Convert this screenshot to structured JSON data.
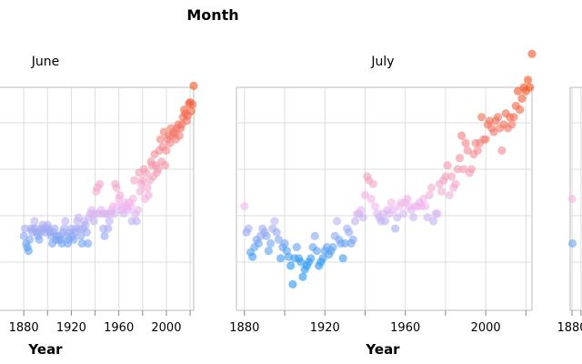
{
  "chart_data": {
    "type": "scatter",
    "title": "Month",
    "xlabel": "Year",
    "ylabel": "",
    "x_tick_labels": [
      "1880",
      "1920",
      "1960",
      "2000"
    ],
    "grid": true,
    "color_scale": {
      "low": "#2196f3",
      "mid": "#f2b8f0",
      "high": "#f4511e",
      "domain": [
        -0.8,
        0,
        1.6
      ]
    },
    "facets": [
      {
        "label": "June",
        "xlim": [
          1860,
          2023
        ],
        "ylim": [
          -1.4,
          1.6
        ],
        "points": [
          [
            1880,
            -0.4
          ],
          [
            1881,
            -0.3
          ],
          [
            1882,
            -0.5
          ],
          [
            1883,
            -0.55
          ],
          [
            1884,
            -0.6
          ],
          [
            1885,
            -0.45
          ],
          [
            1886,
            -0.3
          ],
          [
            1887,
            -0.35
          ],
          [
            1888,
            -0.3
          ],
          [
            1889,
            -0.2
          ],
          [
            1890,
            -0.3
          ],
          [
            1891,
            -0.35
          ],
          [
            1892,
            -0.4
          ],
          [
            1893,
            -0.45
          ],
          [
            1894,
            -0.35
          ],
          [
            1895,
            -0.3
          ],
          [
            1896,
            -0.25
          ],
          [
            1897,
            -0.3
          ],
          [
            1898,
            -0.35
          ],
          [
            1899,
            -0.3
          ],
          [
            1900,
            -0.25
          ],
          [
            1901,
            -0.3
          ],
          [
            1902,
            -0.35
          ],
          [
            1903,
            -0.4
          ],
          [
            1904,
            -0.5
          ],
          [
            1905,
            -0.35
          ],
          [
            1906,
            -0.3
          ],
          [
            1907,
            -0.45
          ],
          [
            1908,
            -0.4
          ],
          [
            1909,
            -0.45
          ],
          [
            1910,
            -0.4
          ],
          [
            1911,
            -0.45
          ],
          [
            1912,
            -0.5
          ],
          [
            1913,
            -0.35
          ],
          [
            1914,
            -0.3
          ],
          [
            1915,
            -0.2
          ],
          [
            1916,
            -0.4
          ],
          [
            1917,
            -0.5
          ],
          [
            1918,
            -0.45
          ],
          [
            1919,
            -0.35
          ],
          [
            1920,
            -0.3
          ],
          [
            1921,
            -0.4
          ],
          [
            1922,
            -0.45
          ],
          [
            1923,
            -0.35
          ],
          [
            1924,
            -0.3
          ],
          [
            1925,
            -0.2
          ],
          [
            1926,
            -0.15
          ],
          [
            1927,
            -0.3
          ],
          [
            1928,
            -0.4
          ],
          [
            1929,
            -0.5
          ],
          [
            1930,
            -0.3
          ],
          [
            1931,
            -0.2
          ],
          [
            1932,
            -0.25
          ],
          [
            1933,
            -0.35
          ],
          [
            1934,
            -0.5
          ],
          [
            1935,
            -0.15
          ],
          [
            1936,
            -0.1
          ],
          [
            1937,
            -0.05
          ],
          [
            1938,
            -0.1
          ],
          [
            1939,
            -0.2
          ],
          [
            1940,
            -0.1
          ],
          [
            1941,
            0.2
          ],
          [
            1942,
            0.25
          ],
          [
            1943,
            -0.1
          ],
          [
            1944,
            0.3
          ],
          [
            1945,
            -0.05
          ],
          [
            1946,
            -0.1
          ],
          [
            1947,
            -0.3
          ],
          [
            1948,
            -0.4
          ],
          [
            1949,
            -0.1
          ],
          [
            1950,
            -0.1
          ],
          [
            1951,
            -0.3
          ],
          [
            1952,
            -0.2
          ],
          [
            1953,
            -0.1
          ],
          [
            1954,
            -0.05
          ],
          [
            1955,
            0.0
          ],
          [
            1956,
            -0.1
          ],
          [
            1957,
            0.3
          ],
          [
            1958,
            0.25
          ],
          [
            1959,
            0.0
          ],
          [
            1960,
            0.1
          ],
          [
            1961,
            0.15
          ],
          [
            1962,
            -0.05
          ],
          [
            1963,
            0.0
          ],
          [
            1964,
            -0.1
          ],
          [
            1965,
            0.05
          ],
          [
            1966,
            0.0
          ],
          [
            1967,
            0.0
          ],
          [
            1968,
            -0.05
          ],
          [
            1969,
            0.05
          ],
          [
            1970,
            0.0
          ],
          [
            1971,
            -0.2
          ],
          [
            1972,
            0.1
          ],
          [
            1973,
            0.35
          ],
          [
            1974,
            -0.1
          ],
          [
            1975,
            -0.2
          ],
          [
            1976,
            -0.05
          ],
          [
            1977,
            0.45
          ],
          [
            1978,
            0.2
          ],
          [
            1979,
            0.3
          ],
          [
            1980,
            0.35
          ],
          [
            1981,
            0.5
          ],
          [
            1982,
            0.1
          ],
          [
            1983,
            0.45
          ],
          [
            1984,
            0.25
          ],
          [
            1985,
            0.15
          ],
          [
            1986,
            0.35
          ],
          [
            1987,
            0.6
          ],
          [
            1988,
            0.55
          ],
          [
            1989,
            0.4
          ],
          [
            1990,
            0.7
          ],
          [
            1991,
            0.55
          ],
          [
            1992,
            0.45
          ],
          [
            1993,
            0.5
          ],
          [
            1994,
            0.75
          ],
          [
            1995,
            0.9
          ],
          [
            1996,
            0.6
          ],
          [
            1997,
            0.8
          ],
          [
            1998,
            1.0
          ],
          [
            1999,
            0.55
          ],
          [
            2000,
            0.75
          ],
          [
            2001,
            0.9
          ],
          [
            2002,
            0.95
          ],
          [
            2003,
            0.85
          ],
          [
            2004,
            1.05
          ],
          [
            2005,
            0.95
          ],
          [
            2006,
            1.0
          ],
          [
            2007,
            0.98
          ],
          [
            2008,
            0.9
          ],
          [
            2009,
            1.05
          ],
          [
            2010,
            1.1
          ],
          [
            2011,
            0.95
          ],
          [
            2012,
            1.05
          ],
          [
            2013,
            1.1
          ],
          [
            2014,
            1.2
          ],
          [
            2015,
            1.3
          ],
          [
            2016,
            1.25
          ],
          [
            2017,
            1.15
          ],
          [
            2018,
            1.22
          ],
          [
            2019,
            1.38
          ],
          [
            2020,
            1.4
          ],
          [
            2021,
            1.28
          ],
          [
            2022,
            1.37
          ],
          [
            2023,
            1.62
          ]
        ]
      },
      {
        "label": "July",
        "xlim": [
          1876,
          2023
        ],
        "ylim": [
          -1.4,
          1.6
        ],
        "points": [
          [
            1880,
            0.0
          ],
          [
            1881,
            -0.35
          ],
          [
            1882,
            -0.3
          ],
          [
            1883,
            -0.62
          ],
          [
            1884,
            -0.68
          ],
          [
            1885,
            -0.55
          ],
          [
            1886,
            -0.45
          ],
          [
            1887,
            -0.5
          ],
          [
            1888,
            -0.4
          ],
          [
            1889,
            -0.3
          ],
          [
            1890,
            -0.35
          ],
          [
            1891,
            -0.4
          ],
          [
            1892,
            -0.6
          ],
          [
            1893,
            -0.5
          ],
          [
            1894,
            -0.3
          ],
          [
            1895,
            -0.2
          ],
          [
            1896,
            -0.35
          ],
          [
            1897,
            -0.45
          ],
          [
            1898,
            -0.7
          ],
          [
            1899,
            -0.55
          ],
          [
            1900,
            -0.5
          ],
          [
            1901,
            -0.6
          ],
          [
            1902,
            -0.68
          ],
          [
            1903,
            -0.8
          ],
          [
            1904,
            -1.05
          ],
          [
            1905,
            -0.7
          ],
          [
            1906,
            -0.55
          ],
          [
            1907,
            -0.7
          ],
          [
            1908,
            -0.75
          ],
          [
            1909,
            -0.95
          ],
          [
            1910,
            -0.85
          ],
          [
            1911,
            -0.8
          ],
          [
            1912,
            -0.75
          ],
          [
            1913,
            -0.7
          ],
          [
            1914,
            -0.55
          ],
          [
            1915,
            -0.4
          ],
          [
            1916,
            -0.6
          ],
          [
            1917,
            -0.8
          ],
          [
            1918,
            -0.75
          ],
          [
            1919,
            -0.7
          ],
          [
            1920,
            -0.6
          ],
          [
            1921,
            -0.55
          ],
          [
            1922,
            -0.65
          ],
          [
            1923,
            -0.6
          ],
          [
            1924,
            -0.55
          ],
          [
            1925,
            -0.4
          ],
          [
            1926,
            -0.2
          ],
          [
            1927,
            -0.45
          ],
          [
            1928,
            -0.5
          ],
          [
            1929,
            -0.7
          ],
          [
            1930,
            -0.5
          ],
          [
            1931,
            -0.3
          ],
          [
            1932,
            -0.35
          ],
          [
            1933,
            -0.5
          ],
          [
            1934,
            -0.45
          ],
          [
            1935,
            -0.2
          ],
          [
            1936,
            -0.1
          ],
          [
            1937,
            -0.1
          ],
          [
            1938,
            -0.05
          ],
          [
            1939,
            -0.15
          ],
          [
            1940,
            0.15
          ],
          [
            1941,
            0.4
          ],
          [
            1942,
            0.35
          ],
          [
            1943,
            0.1
          ],
          [
            1944,
            0.3
          ],
          [
            1945,
            0.0
          ],
          [
            1946,
            -0.1
          ],
          [
            1947,
            -0.15
          ],
          [
            1948,
            -0.2
          ],
          [
            1949,
            -0.1
          ],
          [
            1950,
            -0.2
          ],
          [
            1951,
            -0.05
          ],
          [
            1952,
            -0.1
          ],
          [
            1953,
            0.05
          ],
          [
            1954,
            -0.05
          ],
          [
            1955,
            -0.3
          ],
          [
            1956,
            -0.15
          ],
          [
            1957,
            0.0
          ],
          [
            1958,
            0.05
          ],
          [
            1959,
            -0.1
          ],
          [
            1960,
            0.05
          ],
          [
            1961,
            0.1
          ],
          [
            1962,
            0.0
          ],
          [
            1963,
            -0.05
          ],
          [
            1964,
            -0.15
          ],
          [
            1965,
            0.0
          ],
          [
            1966,
            0.0
          ],
          [
            1967,
            0.05
          ],
          [
            1968,
            0.0
          ],
          [
            1969,
            0.1
          ],
          [
            1970,
            0.0
          ],
          [
            1971,
            -0.15
          ],
          [
            1972,
            0.15
          ],
          [
            1973,
            0.25
          ],
          [
            1974,
            -0.2
          ],
          [
            1975,
            -0.1
          ],
          [
            1976,
            -0.1
          ],
          [
            1977,
            0.3
          ],
          [
            1978,
            0.2
          ],
          [
            1979,
            0.35
          ],
          [
            1980,
            0.4
          ],
          [
            1981,
            0.55
          ],
          [
            1982,
            0.15
          ],
          [
            1983,
            0.4
          ],
          [
            1984,
            0.25
          ],
          [
            1985,
            0.3
          ],
          [
            1986,
            0.5
          ],
          [
            1987,
            0.65
          ],
          [
            1988,
            0.95
          ],
          [
            1989,
            0.5
          ],
          [
            1990,
            0.85
          ],
          [
            1991,
            0.75
          ],
          [
            1992,
            0.45
          ],
          [
            1993,
            0.5
          ],
          [
            1994,
            0.7
          ],
          [
            1995,
            0.85
          ],
          [
            1996,
            0.75
          ],
          [
            1997,
            0.85
          ],
          [
            1998,
            1.2
          ],
          [
            1999,
            0.9
          ],
          [
            2000,
            0.9
          ],
          [
            2001,
            1.1
          ],
          [
            2002,
            1.15
          ],
          [
            2003,
            1.05
          ],
          [
            2004,
            1.0
          ],
          [
            2005,
            1.15
          ],
          [
            2006,
            1.2
          ],
          [
            2007,
            1.05
          ],
          [
            2008,
            0.75
          ],
          [
            2009,
            1.1
          ],
          [
            2010,
            1.25
          ],
          [
            2011,
            1.05
          ],
          [
            2012,
            1.2
          ],
          [
            2013,
            1.1
          ],
          [
            2014,
            1.2
          ],
          [
            2015,
            1.35
          ],
          [
            2016,
            1.55
          ],
          [
            2017,
            1.3
          ],
          [
            2018,
            1.45
          ],
          [
            2019,
            1.6
          ],
          [
            2020,
            1.55
          ],
          [
            2021,
            1.7
          ],
          [
            2022,
            1.6
          ],
          [
            2023,
            2.05
          ]
        ]
      },
      {
        "label": "",
        "xlim": [
          1876,
          2023
        ],
        "ylim": [
          -1.4,
          1.6
        ],
        "points": [
          [
            1880,
            0.1
          ],
          [
            1881,
            -0.5
          ]
        ]
      }
    ]
  }
}
